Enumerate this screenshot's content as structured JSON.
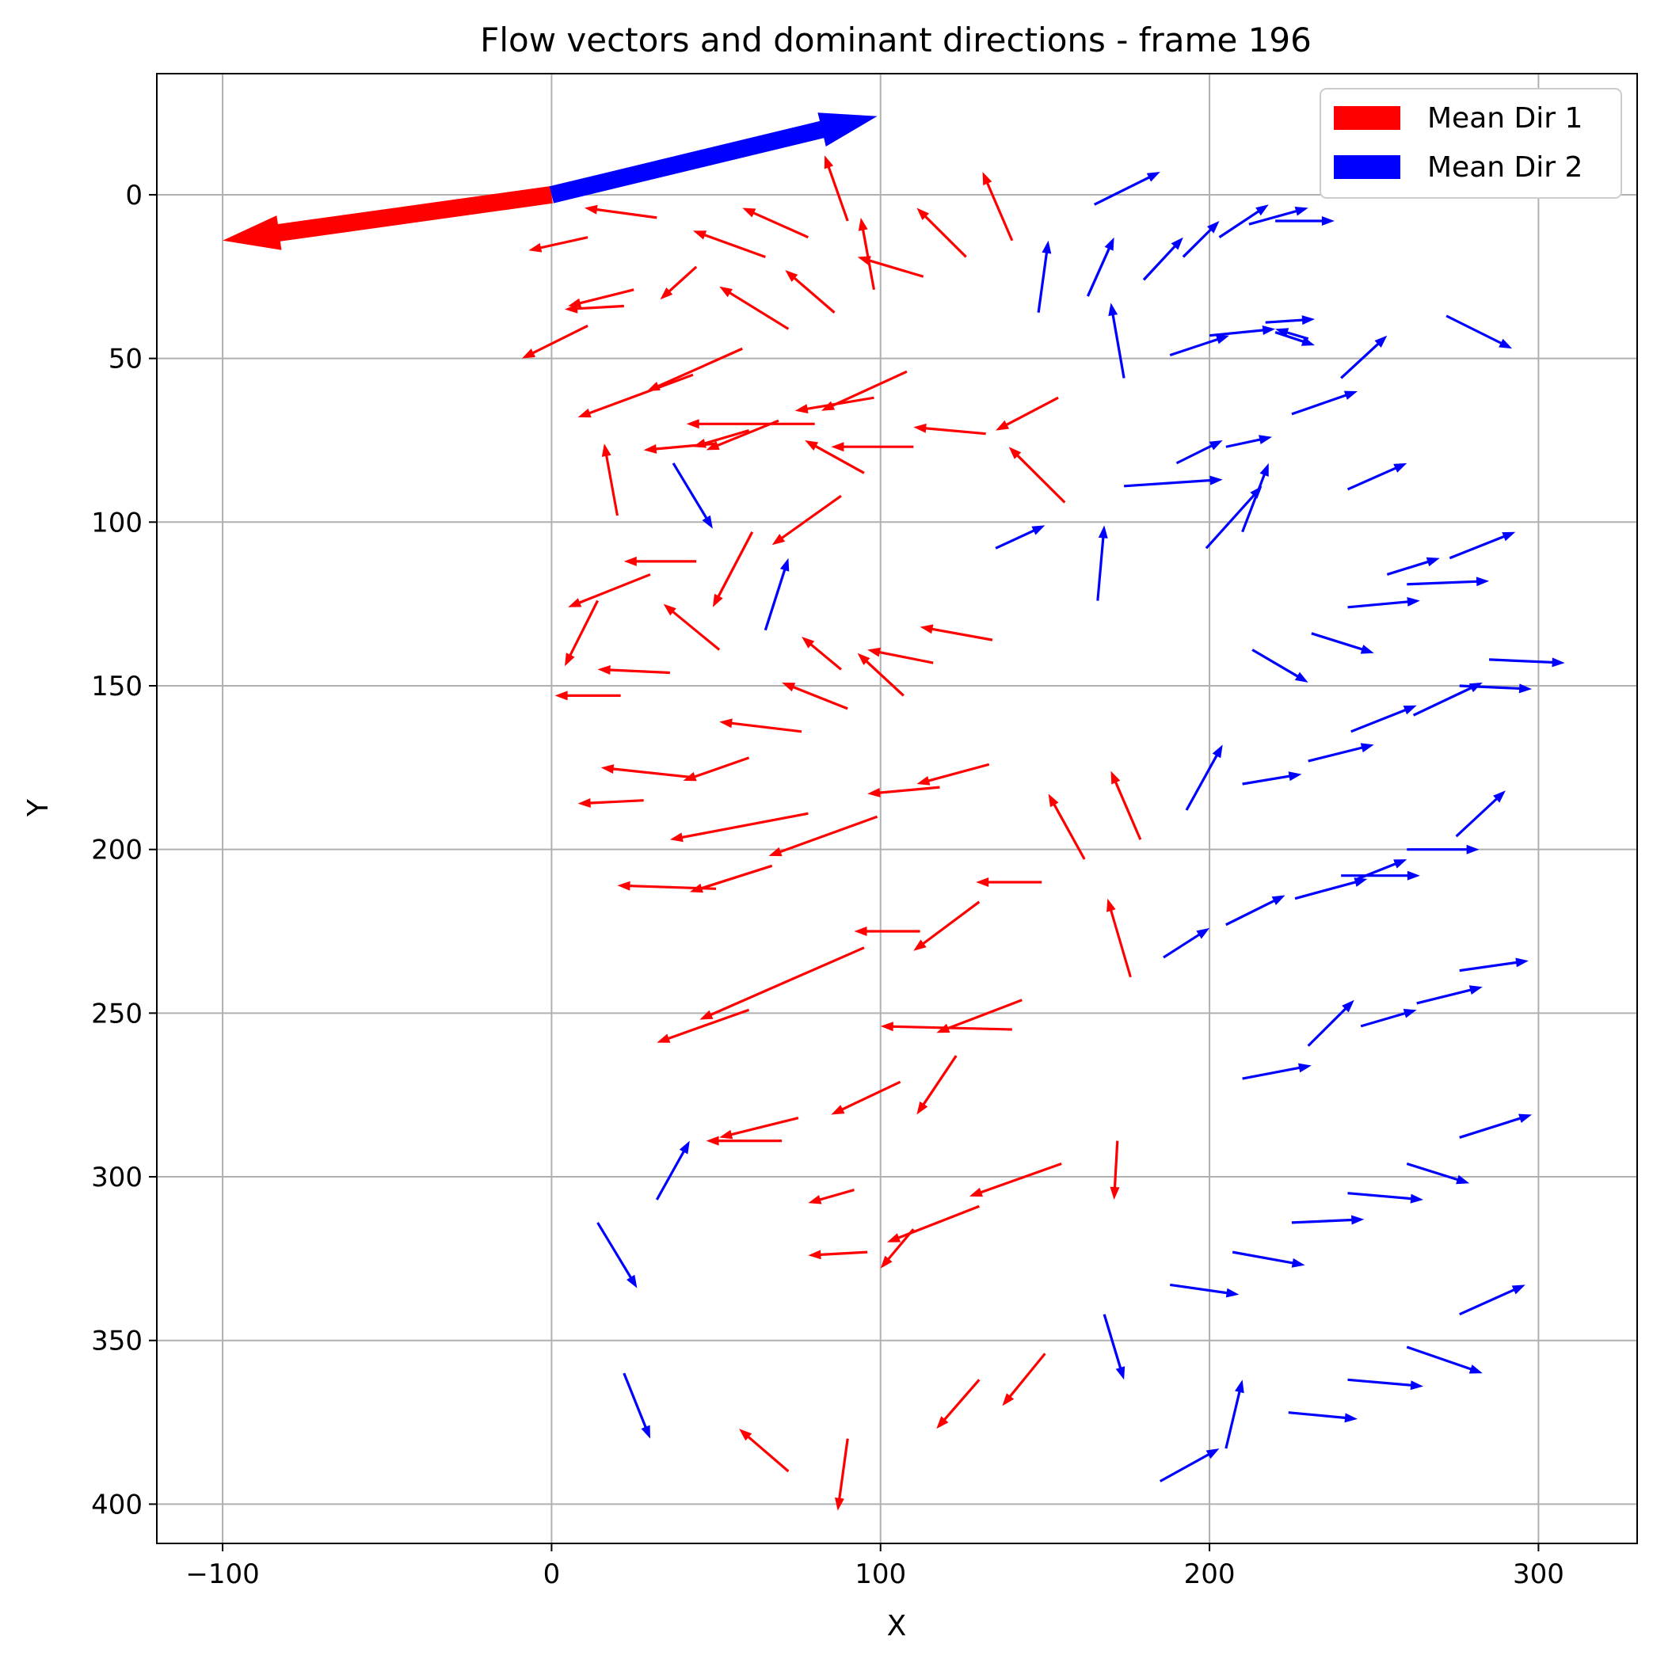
{
  "chart_data": {
    "type": "quiver",
    "title": "Flow vectors and dominant directions - frame 196",
    "xlabel": "X",
    "ylabel": "Y",
    "xlim": [
      -120,
      330
    ],
    "ylim": [
      412,
      -37
    ],
    "y_inverted": true,
    "xticks": [
      -100,
      0,
      100,
      200,
      300
    ],
    "yticks": [
      0,
      50,
      100,
      150,
      200,
      250,
      300,
      350,
      400
    ],
    "xtick_labels": [
      "−100",
      "0",
      "100",
      "200",
      "300"
    ],
    "ytick_labels": [
      "0",
      "50",
      "100",
      "150",
      "200",
      "250",
      "300",
      "350",
      "400"
    ],
    "grid": true,
    "legend_position": "top-right",
    "legend": [
      {
        "label": "Mean Dir 1",
        "color": "#ff0000"
      },
      {
        "label": "Mean Dir 2",
        "color": "#0000ff"
      }
    ],
    "mean_directions": [
      {
        "name": "Mean Dir 1",
        "color": "#ff0000",
        "x0": 0,
        "y0": 0,
        "dx": -100,
        "dy": 14
      },
      {
        "name": "Mean Dir 2",
        "color": "#0000ff",
        "x0": 0,
        "y0": 0,
        "dx": 99,
        "dy": -24
      }
    ],
    "series": [
      {
        "name": "Mean Dir 1",
        "color": "#ff0000",
        "vectors": [
          [
            32,
            7,
            -22,
            -3
          ],
          [
            11,
            13,
            -18,
            4
          ],
          [
            25,
            29,
            -20,
            5
          ],
          [
            22,
            34,
            -18,
            1
          ],
          [
            11,
            40,
            -20,
            10
          ],
          [
            44,
            22,
            -11,
            10
          ],
          [
            78,
            13,
            -20,
            -9
          ],
          [
            65,
            19,
            -22,
            -8
          ],
          [
            90,
            8,
            -7,
            -20
          ],
          [
            86,
            36,
            -15,
            -13
          ],
          [
            72,
            41,
            -21,
            -13
          ],
          [
            98,
            29,
            -4,
            -22
          ],
          [
            113,
            25,
            -20,
            -6
          ],
          [
            126,
            19,
            -15,
            -15
          ],
          [
            140,
            14,
            -9,
            -21
          ],
          [
            58,
            47,
            -29,
            13
          ],
          [
            43,
            55,
            -35,
            13
          ],
          [
            20,
            98,
            -4,
            -22
          ],
          [
            80,
            70,
            -39,
            0
          ],
          [
            98,
            62,
            -24,
            4
          ],
          [
            108,
            54,
            -26,
            12
          ],
          [
            132,
            73,
            -22,
            -2
          ],
          [
            110,
            77,
            -25,
            0
          ],
          [
            154,
            62,
            -19,
            10
          ],
          [
            69,
            69,
            -22,
            9
          ],
          [
            60,
            72,
            -17,
            5
          ],
          [
            50,
            76,
            -22,
            2
          ],
          [
            95,
            85,
            -18,
            -10
          ],
          [
            156,
            94,
            -17,
            -17
          ],
          [
            88,
            92,
            -21,
            15
          ],
          [
            61,
            103,
            -12,
            23
          ],
          [
            44,
            112,
            -22,
            0
          ],
          [
            30,
            116,
            -25,
            10
          ],
          [
            14,
            124,
            -10,
            20
          ],
          [
            36,
            146,
            -22,
            -1
          ],
          [
            21,
            153,
            -20,
            0
          ],
          [
            51,
            139,
            -17,
            -14
          ],
          [
            88,
            145,
            -12,
            -10
          ],
          [
            116,
            143,
            -20,
            -4
          ],
          [
            134,
            136,
            -22,
            -4
          ],
          [
            107,
            153,
            -14,
            -13
          ],
          [
            90,
            157,
            -20,
            -8
          ],
          [
            76,
            164,
            -25,
            -3
          ],
          [
            60,
            172,
            -20,
            7
          ],
          [
            43,
            178,
            -28,
            -3
          ],
          [
            28,
            185,
            -20,
            1
          ],
          [
            78,
            189,
            -42,
            8
          ],
          [
            99,
            190,
            -33,
            12
          ],
          [
            118,
            181,
            -22,
            2
          ],
          [
            133,
            174,
            -22,
            6
          ],
          [
            179,
            197,
            -9,
            -21
          ],
          [
            162,
            203,
            -11,
            -20
          ],
          [
            149,
            210,
            -20,
            0
          ],
          [
            130,
            216,
            -20,
            15
          ],
          [
            112,
            225,
            -20,
            0
          ],
          [
            67,
            205,
            -25,
            8
          ],
          [
            50,
            212,
            -30,
            -1
          ],
          [
            95,
            230,
            -50,
            22
          ],
          [
            60,
            249,
            -28,
            10
          ],
          [
            143,
            246,
            -26,
            10
          ],
          [
            140,
            255,
            -40,
            -1
          ],
          [
            176,
            239,
            -7,
            -24
          ],
          [
            123,
            263,
            -12,
            18
          ],
          [
            106,
            271,
            -21,
            10
          ],
          [
            75,
            282,
            -24,
            6
          ],
          [
            70,
            289,
            -23,
            0
          ],
          [
            92,
            304,
            -14,
            4
          ],
          [
            155,
            296,
            -28,
            10
          ],
          [
            130,
            309,
            -28,
            11
          ],
          [
            110,
            316,
            -10,
            12
          ],
          [
            172,
            289,
            -1,
            18
          ],
          [
            96,
            323,
            -18,
            1
          ],
          [
            150,
            354,
            -13,
            16
          ],
          [
            130,
            362,
            -13,
            15
          ],
          [
            72,
            390,
            -15,
            -13
          ],
          [
            90,
            380,
            -3,
            22
          ]
        ]
      },
      {
        "name": "Mean Dir 2",
        "color": "#0000ff",
        "vectors": [
          [
            165,
            3,
            20,
            -10
          ],
          [
            148,
            36,
            3,
            -22
          ],
          [
            163,
            31,
            8,
            -18
          ],
          [
            180,
            26,
            12,
            -13
          ],
          [
            192,
            19,
            11,
            -11
          ],
          [
            203,
            13,
            15,
            -10
          ],
          [
            212,
            9,
            18,
            -5
          ],
          [
            220,
            8,
            18,
            0
          ],
          [
            174,
            56,
            -4,
            -23
          ],
          [
            188,
            49,
            18,
            -6
          ],
          [
            200,
            43,
            20,
            -2
          ],
          [
            217,
            39,
            15,
            -1
          ],
          [
            230,
            44,
            -10,
            -3
          ],
          [
            220,
            42,
            12,
            4
          ],
          [
            272,
            37,
            20,
            10
          ],
          [
            240,
            56,
            14,
            -13
          ],
          [
            225,
            67,
            20,
            -7
          ],
          [
            190,
            82,
            14,
            -7
          ],
          [
            205,
            77,
            14,
            -3
          ],
          [
            174,
            89,
            30,
            -2
          ],
          [
            210,
            103,
            8,
            -21
          ],
          [
            242,
            90,
            18,
            -8
          ],
          [
            254,
            116,
            16,
            -5
          ],
          [
            273,
            111,
            20,
            -8
          ],
          [
            199,
            108,
            17,
            -19
          ],
          [
            135,
            108,
            15,
            -7
          ],
          [
            166,
            124,
            2,
            -23
          ],
          [
            37,
            82,
            12,
            20
          ],
          [
            65,
            133,
            7,
            -22
          ],
          [
            213,
            139,
            17,
            10
          ],
          [
            231,
            134,
            19,
            6
          ],
          [
            242,
            126,
            22,
            -2
          ],
          [
            260,
            119,
            25,
            -1
          ],
          [
            285,
            142,
            23,
            1
          ],
          [
            276,
            150,
            22,
            1
          ],
          [
            262,
            159,
            21,
            -10
          ],
          [
            243,
            164,
            20,
            -8
          ],
          [
            230,
            173,
            20,
            -5
          ],
          [
            210,
            180,
            18,
            -3
          ],
          [
            193,
            188,
            11,
            -20
          ],
          [
            275,
            196,
            15,
            -14
          ],
          [
            260,
            200,
            22,
            0
          ],
          [
            240,
            208,
            24,
            0
          ],
          [
            226,
            215,
            22,
            -6
          ],
          [
            205,
            223,
            18,
            -9
          ],
          [
            186,
            233,
            14,
            -9
          ],
          [
            245,
            209,
            15,
            -6
          ],
          [
            276,
            237,
            21,
            -3
          ],
          [
            263,
            247,
            20,
            -5
          ],
          [
            246,
            254,
            17,
            -5
          ],
          [
            230,
            260,
            14,
            -14
          ],
          [
            210,
            270,
            21,
            -4
          ],
          [
            276,
            288,
            22,
            -7
          ],
          [
            260,
            296,
            19,
            6
          ],
          [
            242,
            305,
            23,
            2
          ],
          [
            225,
            314,
            22,
            -1
          ],
          [
            207,
            323,
            22,
            4
          ],
          [
            188,
            333,
            21,
            3
          ],
          [
            168,
            342,
            6,
            20
          ],
          [
            14,
            314,
            12,
            20
          ],
          [
            32,
            307,
            10,
            -18
          ],
          [
            22,
            360,
            8,
            20
          ],
          [
            185,
            393,
            18,
            -10
          ],
          [
            205,
            383,
            5,
            -21
          ],
          [
            260,
            352,
            23,
            8
          ],
          [
            242,
            362,
            23,
            2
          ],
          [
            224,
            372,
            21,
            2
          ],
          [
            276,
            342,
            20,
            -9
          ]
        ]
      }
    ]
  }
}
